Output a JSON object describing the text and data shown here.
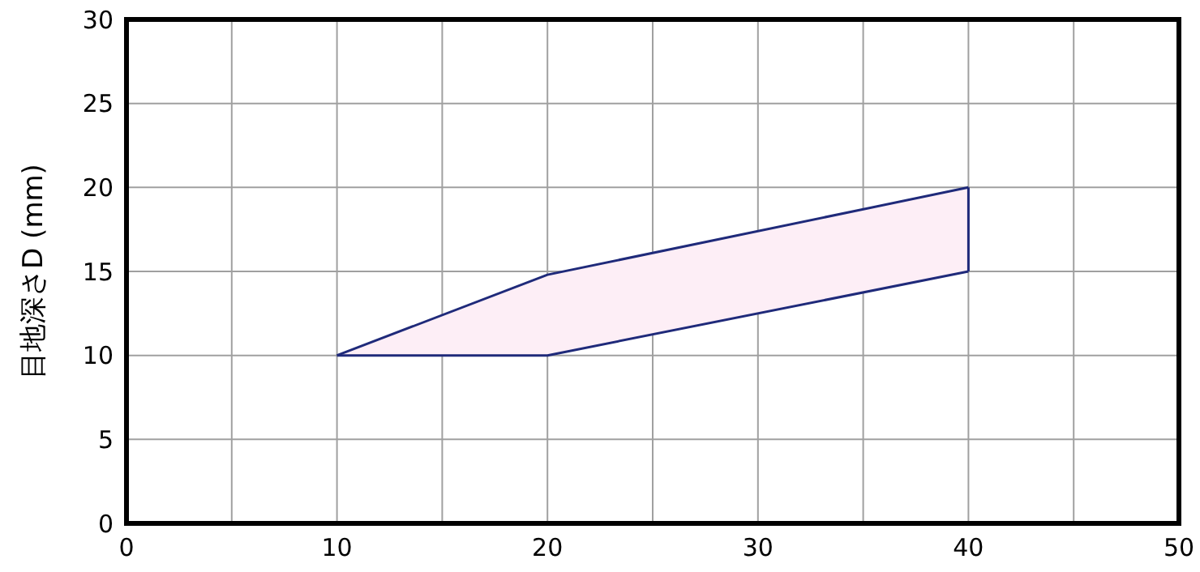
{
  "chart_data": {
    "type": "line",
    "ylabel": "目地深さD (mm)",
    "x": [
      10,
      20,
      40
    ],
    "series": [
      {
        "color": "#1f2a7a",
        "values": [
          10,
          14.8,
          20
        ]
      },
      {
        "color": "#1f2a7a",
        "values": [
          10,
          10,
          15
        ]
      }
    ],
    "xlim": [
      0,
      50
    ],
    "xticks": [
      0,
      {
        "value": 5,
        "label": null
      },
      10,
      {
        "value": 15,
        "label": null
      },
      20,
      {
        "value": 25,
        "label": null
      },
      30,
      {
        "value": 35,
        "label": null
      },
      40,
      {
        "value": 45,
        "label": null
      },
      50
    ],
    "ylim": [
      0,
      30
    ],
    "yticks": [
      0,
      5,
      10,
      15,
      20,
      25,
      30
    ],
    "grid": true
  }
}
